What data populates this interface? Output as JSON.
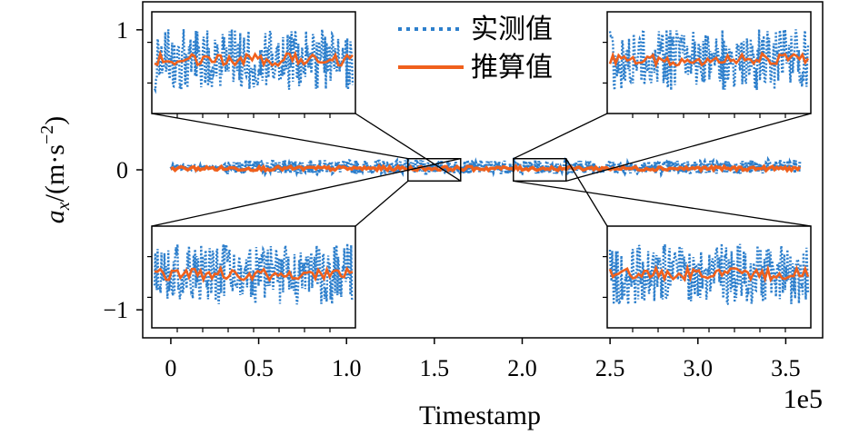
{
  "chart_data": {
    "type": "line",
    "xlabel": "Timestamp",
    "x_offset_label": "1e5",
    "ylabel_main": "a",
    "ylabel_sub": "x",
    "ylabel_rest": "/(m·s",
    "ylabel_sup": "−2",
    "ylabel_close": ")",
    "xlim": [
      -0.16,
      3.71
    ],
    "ylim": [
      -1.2,
      1.2
    ],
    "xticks": [
      0,
      0.5,
      1.0,
      1.5,
      2.0,
      2.5,
      3.0,
      3.5
    ],
    "xtick_labels": [
      "0",
      "0.5",
      "1.0",
      "1.5",
      "2.0",
      "2.5",
      "3.0",
      "3.5"
    ],
    "yticks": [
      1,
      0,
      -1
    ],
    "ytick_labels": [
      "1",
      "0",
      "−1"
    ],
    "x_range_data": [
      0,
      3.58
    ],
    "legend_position": "top-center",
    "series": [
      {
        "name": "实测值",
        "style": "dotted",
        "color": "#2d7fcc",
        "mean": 0.02,
        "noise_amplitude": 0.05
      },
      {
        "name": "推算值",
        "style": "solid",
        "color": "#f0601c",
        "mean": 0.01,
        "noise_amplitude": 0.015
      }
    ],
    "insets": [
      {
        "id": "top-left",
        "x_range": [
          1.35,
          1.65
        ],
        "y_range": [
          -0.08,
          0.08
        ],
        "placement": "top-left"
      },
      {
        "id": "top-right",
        "x_range": [
          1.95,
          2.25
        ],
        "y_range": [
          -0.08,
          0.08
        ],
        "placement": "top-right"
      },
      {
        "id": "bottom-left",
        "x_range": [
          1.35,
          1.65
        ],
        "y_range": [
          -0.08,
          0.08
        ],
        "placement": "bottom-left"
      },
      {
        "id": "bottom-right",
        "x_range": [
          1.95,
          2.25
        ],
        "y_range": [
          -0.08,
          0.08
        ],
        "placement": "bottom-right"
      }
    ]
  }
}
